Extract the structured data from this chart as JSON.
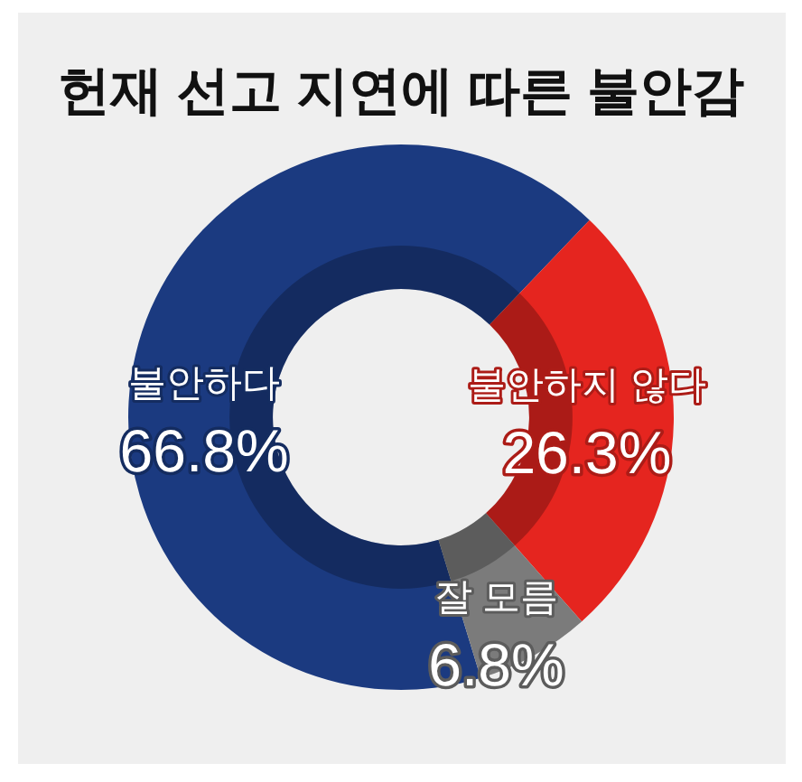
{
  "chart_data": {
    "type": "donut",
    "title": "헌재 선고 지연에 따른 불안감",
    "categories": [
      "불안하다",
      "불안하지 않다",
      "잘 모름"
    ],
    "values": [
      66.8,
      26.3,
      6.8
    ],
    "colors": [
      "#1b3a80",
      "#e5251f",
      "#7b7b7b"
    ],
    "value_labels": [
      "66.8%",
      "26.3%",
      "6.8%"
    ]
  }
}
